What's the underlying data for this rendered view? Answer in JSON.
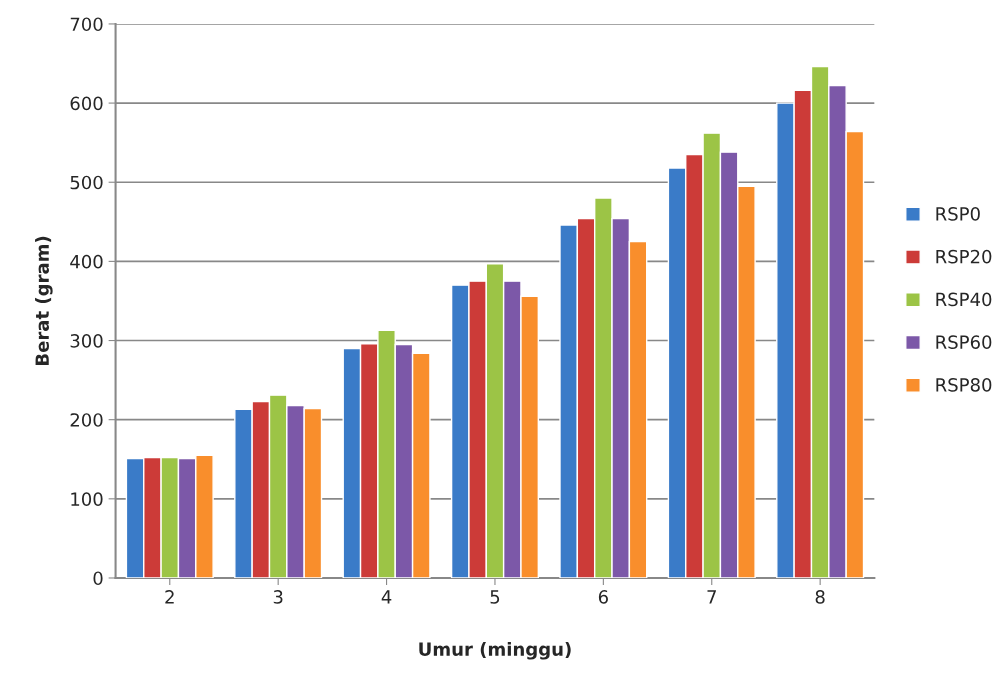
{
  "chart_data": {
    "type": "bar",
    "xlabel": "Umur (minggu)",
    "ylabel": "Berat (gram)",
    "categories": [
      "2",
      "3",
      "4",
      "5",
      "6",
      "7",
      "8"
    ],
    "series": [
      {
        "name": "RSP0",
        "color": "#3a7bc8",
        "values": [
          151,
          213,
          290,
          370,
          446,
          518,
          600
        ]
      },
      {
        "name": "RSP20",
        "color": "#cc3b38",
        "values": [
          152,
          223,
          296,
          375,
          454,
          535,
          616
        ]
      },
      {
        "name": "RSP40",
        "color": "#9cc446",
        "values": [
          152,
          231,
          313,
          397,
          480,
          562,
          646
        ]
      },
      {
        "name": "RSP60",
        "color": "#7c58a8",
        "values": [
          151,
          218,
          295,
          375,
          454,
          538,
          622
        ]
      },
      {
        "name": "RSP80",
        "color": "#f98e2c",
        "values": [
          155,
          214,
          284,
          356,
          425,
          495,
          564
        ]
      }
    ],
    "ylim": [
      0,
      700
    ],
    "yticks": [
      0,
      100,
      200,
      300,
      400,
      500,
      600,
      700
    ],
    "grid": "y",
    "legend": "right"
  }
}
